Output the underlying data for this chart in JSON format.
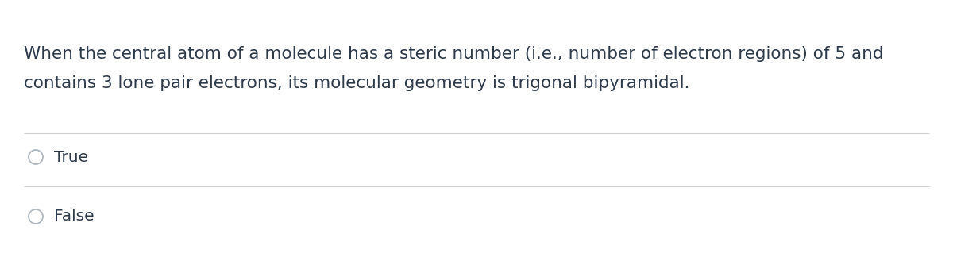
{
  "background_color": "#ffffff",
  "text_color": "#2d3a4a",
  "question_line1": "When the central atom of a molecule has a steric number (i.e., number of electron regions) of 5 and",
  "question_line2": "contains 3 lone pair electrons, its molecular geometry is trigonal bipyramidal.",
  "option1": "True",
  "option2": "False",
  "divider_color": "#d0d0d0",
  "circle_color": "#b0b8c0",
  "font_size_question": 15.5,
  "font_size_options": 14.5,
  "fig_width": 12.0,
  "fig_height": 3.53,
  "dpi": 100
}
